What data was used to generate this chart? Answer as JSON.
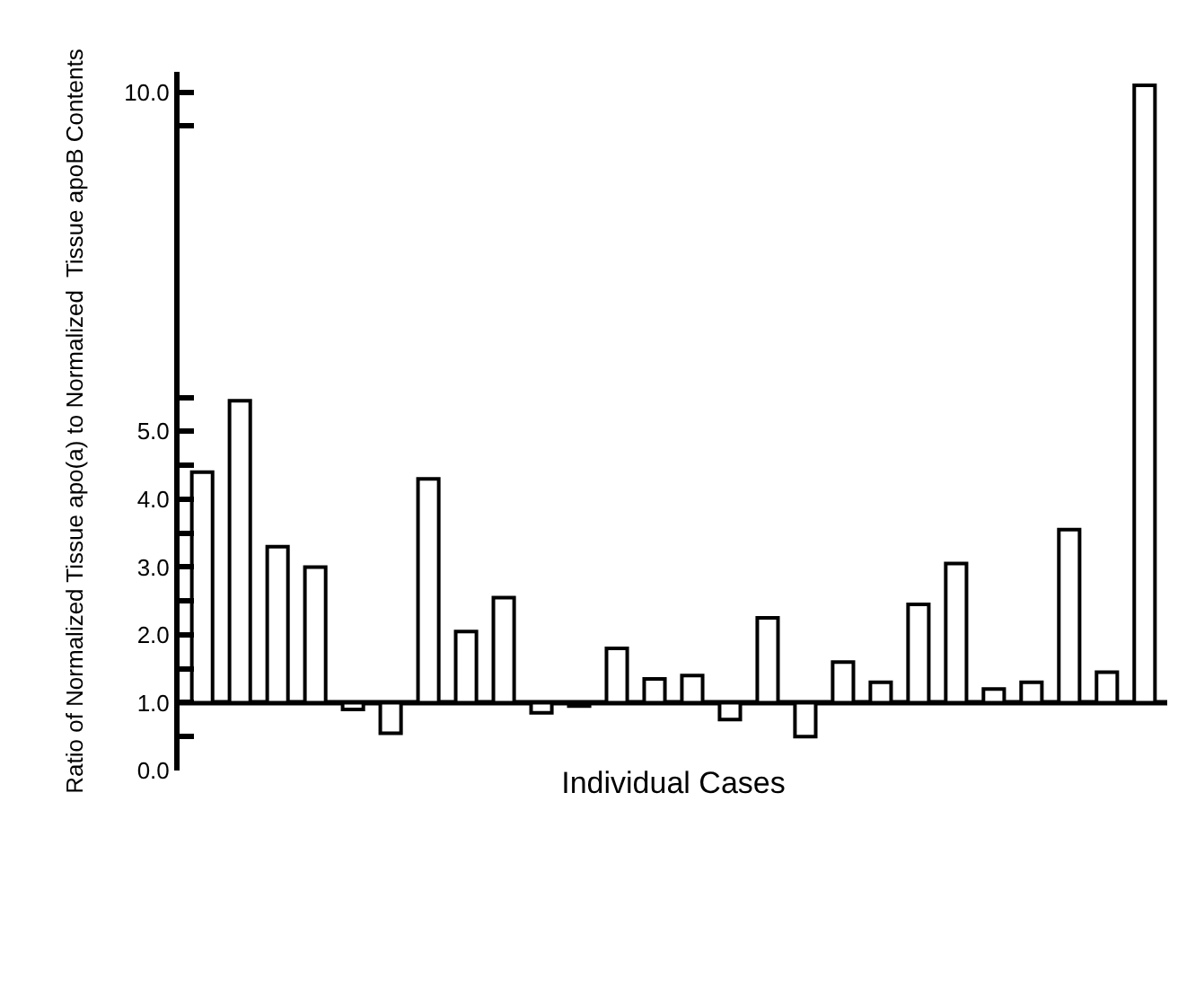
{
  "chart_data": {
    "type": "bar",
    "xlabel": "Individual Cases",
    "ylabel": "Ratio of Normalized Tissue apo(a) to Normalized  Tissue apoB Contents",
    "categories": [
      null,
      null,
      null,
      null,
      null,
      null,
      null,
      null,
      null,
      null,
      null,
      null,
      null,
      null,
      null,
      null,
      null,
      null,
      null,
      null,
      null,
      null,
      null,
      null,
      null,
      null
    ],
    "base": [
      1,
      1,
      1,
      1,
      1,
      1,
      1,
      1,
      1,
      1,
      1,
      1,
      1,
      1,
      1,
      1,
      1,
      1,
      1,
      1,
      1,
      1,
      1,
      1,
      1,
      1
    ],
    "values": [
      3.4,
      4.45,
      2.3,
      2.0,
      -0.1,
      -0.45,
      3.3,
      1.05,
      1.55,
      -0.15,
      -0.05,
      0.8,
      0.35,
      0.4,
      -0.25,
      1.25,
      -0.5,
      0.6,
      0.3,
      1.45,
      2.05,
      0.2,
      0.3,
      2.55,
      0.45,
      9.1
    ],
    "color": "#ffffff",
    "ylim": [
      0,
      10.3
    ],
    "yticks": [
      {
        "value": 0,
        "label": "0.0"
      },
      {
        "value": 0.5,
        "label": null
      },
      {
        "value": 1,
        "label": "1.0"
      },
      {
        "value": 1.5,
        "label": null
      },
      {
        "value": 2,
        "label": "2.0"
      },
      {
        "value": 2.5,
        "label": null
      },
      {
        "value": 3,
        "label": "3.0"
      },
      {
        "value": 3.5,
        "label": null
      },
      {
        "value": 4,
        "label": "4.0"
      },
      {
        "value": 4.5,
        "label": null
      },
      {
        "value": 5,
        "label": "5.0"
      },
      {
        "value": 5.5,
        "label": null
      },
      {
        "value": 9.5,
        "label": null
      },
      {
        "value": 10,
        "label": "10.0"
      }
    ],
    "ref_lines": [
      {
        "axis": "y",
        "value": 1,
        "color": "#000000"
      }
    ],
    "tick_labels": "y"
  }
}
